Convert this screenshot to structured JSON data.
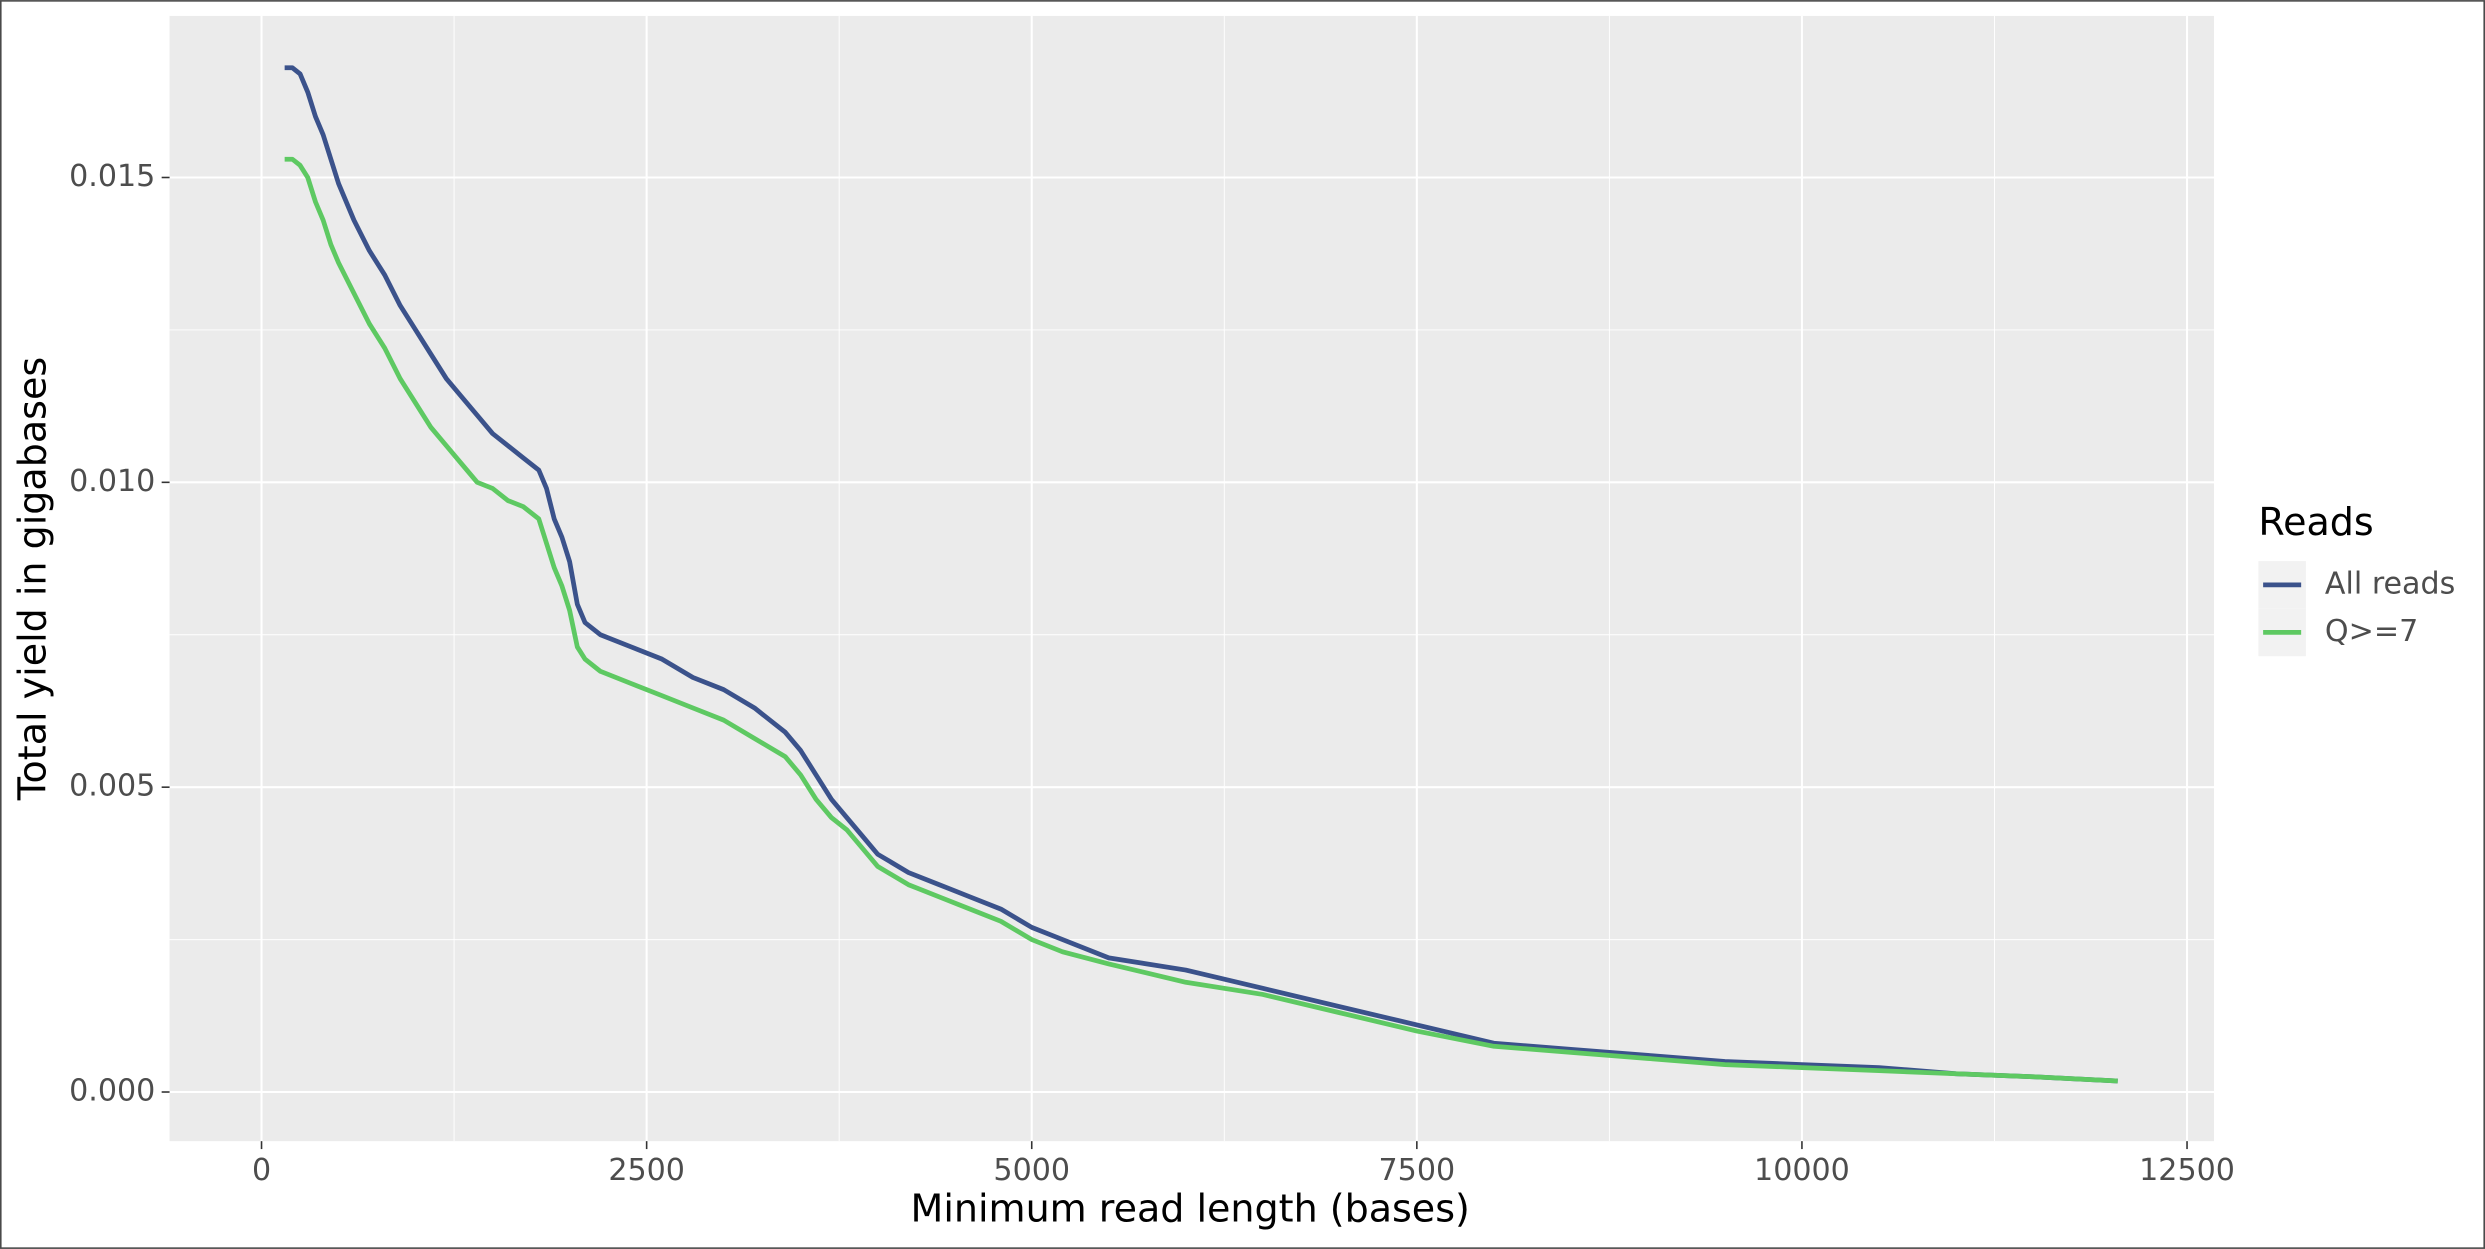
{
  "chart_data": {
    "type": "line",
    "x_label": "Minimum read length (bases)",
    "y_label": "Total yield in gigabases",
    "legend_title": "Reads",
    "legend_position": "right",
    "grid": true,
    "background": "#ebebeb",
    "xlim": [
      -597,
      12675
    ],
    "ylim": [
      -0.000806,
      0.01765
    ],
    "xticks": [
      0,
      2500,
      5000,
      7500,
      10000,
      12500
    ],
    "yticks": [
      {
        "value": 0,
        "label": "0.000"
      },
      {
        "value": 0.005,
        "label": "0.005"
      },
      {
        "value": 0.01,
        "label": "0.010"
      },
      {
        "value": 0.015,
        "label": "0.015"
      }
    ],
    "x": [
      150,
      200,
      250,
      300,
      350,
      400,
      450,
      500,
      600,
      700,
      800,
      900,
      1000,
      1100,
      1200,
      1300,
      1400,
      1500,
      1600,
      1700,
      1800,
      1850,
      1900,
      1950,
      2000,
      2050,
      2100,
      2200,
      2400,
      2600,
      2800,
      3000,
      3200,
      3400,
      3500,
      3600,
      3700,
      3800,
      3900,
      4000,
      4200,
      4400,
      4600,
      4800,
      5000,
      5200,
      5500,
      6000,
      6500,
      7000,
      7500,
      8000,
      8500,
      9000,
      9500,
      10000,
      10500,
      11000,
      11500,
      12050
    ],
    "series": [
      {
        "name": "All reads",
        "color": "#3b528b",
        "values": [
          0.0168,
          0.0168,
          0.0167,
          0.0164,
          0.016,
          0.0157,
          0.0153,
          0.0149,
          0.0143,
          0.0138,
          0.0134,
          0.0129,
          0.0125,
          0.0121,
          0.0117,
          0.0114,
          0.0111,
          0.0108,
          0.0106,
          0.0104,
          0.0102,
          0.0099,
          0.0094,
          0.0091,
          0.0087,
          0.008,
          0.0077,
          0.0075,
          0.0073,
          0.0071,
          0.0068,
          0.0066,
          0.0063,
          0.0059,
          0.0056,
          0.0052,
          0.0048,
          0.0045,
          0.0042,
          0.0039,
          0.0036,
          0.0034,
          0.0032,
          0.003,
          0.0027,
          0.0025,
          0.0022,
          0.002,
          0.0017,
          0.0014,
          0.0011,
          0.0008,
          0.0007,
          0.0006,
          0.0005,
          0.00045,
          0.0004,
          0.0003,
          0.00025,
          0.00018
        ]
      },
      {
        "name": "Q>=7",
        "color": "#5ec962",
        "values": [
          0.0153,
          0.0153,
          0.0152,
          0.015,
          0.0146,
          0.0143,
          0.0139,
          0.0136,
          0.0131,
          0.0126,
          0.0122,
          0.0117,
          0.0113,
          0.0109,
          0.0106,
          0.0103,
          0.01,
          0.0099,
          0.0097,
          0.0096,
          0.0094,
          0.009,
          0.0086,
          0.0083,
          0.0079,
          0.0073,
          0.0071,
          0.0069,
          0.0067,
          0.0065,
          0.0063,
          0.0061,
          0.0058,
          0.0055,
          0.0052,
          0.0048,
          0.0045,
          0.0043,
          0.004,
          0.0037,
          0.0034,
          0.0032,
          0.003,
          0.0028,
          0.0025,
          0.0023,
          0.0021,
          0.0018,
          0.0016,
          0.0013,
          0.001,
          0.00075,
          0.00065,
          0.00055,
          0.00045,
          0.0004,
          0.00035,
          0.0003,
          0.00025,
          0.00018
        ]
      }
    ]
  }
}
